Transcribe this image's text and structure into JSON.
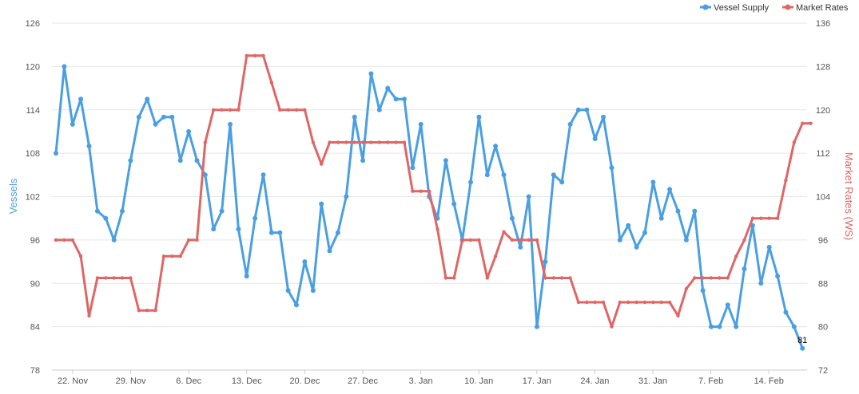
{
  "chart_data": {
    "type": "line",
    "x_tick_labels": [
      "22. Nov",
      "29. Nov",
      "6. Dec",
      "13. Dec",
      "20. Dec",
      "27. Dec",
      "3. Jan",
      "10. Jan",
      "17. Jan",
      "24. Jan",
      "31. Jan",
      "7. Feb",
      "14. Feb"
    ],
    "y_left": {
      "label": "Vessels",
      "min": 78,
      "max": 126,
      "ticks": [
        78,
        84,
        90,
        96,
        102,
        108,
        114,
        120,
        126
      ],
      "color": "#4a9fe3"
    },
    "y_right": {
      "label": "Market Rates (WS)",
      "min": 72,
      "max": 136,
      "ticks": [
        72,
        80,
        88,
        96,
        104,
        112,
        120,
        128,
        136
      ],
      "color": "#e06666"
    },
    "grid": "horizontal",
    "legend_position": "top-right",
    "series": [
      {
        "name": "Vessel Supply",
        "axis": "left",
        "color": "#4a9fe3",
        "values": [
          108,
          120,
          112,
          115.5,
          109,
          100,
          99,
          96,
          100,
          107,
          113,
          115.5,
          112,
          113,
          113,
          107,
          111,
          107,
          105,
          97.5,
          100,
          112,
          97.5,
          91,
          99,
          105,
          97,
          97,
          89,
          87,
          93,
          89,
          101,
          94.5,
          97,
          102,
          113,
          107,
          119,
          114,
          117,
          115.5,
          115.5,
          106,
          112,
          102,
          99,
          107,
          101,
          96,
          104,
          113,
          105,
          109,
          105,
          99,
          95,
          102,
          84,
          93,
          105,
          104,
          112,
          114,
          114,
          110,
          113,
          106,
          96,
          98,
          95,
          97,
          104,
          99,
          103,
          100,
          96,
          100,
          89,
          84,
          84,
          87,
          84,
          92,
          98,
          90,
          95,
          91,
          86,
          84,
          81
        ],
        "labels": [
          {
            "index": 90,
            "text": "81"
          }
        ]
      },
      {
        "name": "Market Rates",
        "axis": "right",
        "color": "#e06666",
        "values": [
          96,
          96,
          96,
          93,
          82,
          89,
          89,
          89,
          89,
          89,
          83,
          83,
          83,
          93,
          93,
          93,
          96,
          96,
          114,
          120,
          120,
          120,
          120,
          130,
          130,
          130,
          125,
          120,
          120,
          120,
          120,
          114,
          110,
          114,
          114,
          114,
          114,
          114,
          114,
          114,
          114,
          114,
          114,
          105,
          105,
          105,
          98,
          89,
          89,
          96,
          96,
          96,
          89,
          93,
          97.5,
          96,
          96,
          96,
          96,
          89,
          89,
          89,
          89,
          84.5,
          84.5,
          84.5,
          84.5,
          80,
          84.5,
          84.5,
          84.5,
          84.5,
          84.5,
          84.5,
          84.5,
          82,
          87,
          89,
          89,
          89,
          89,
          89,
          93,
          96,
          100,
          100,
          100,
          100,
          107,
          114,
          117.5,
          117.5
        ]
      }
    ]
  }
}
